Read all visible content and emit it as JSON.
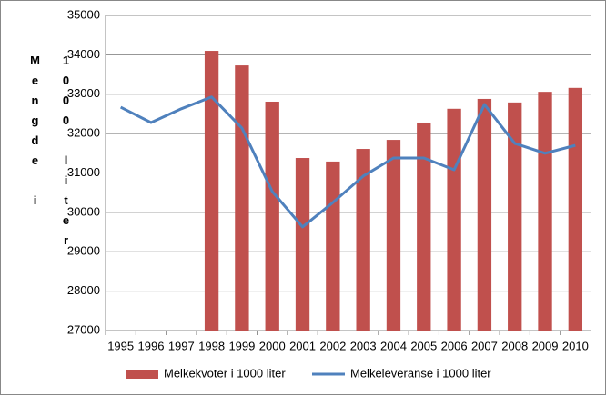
{
  "chart_data": {
    "type": "bar-line",
    "y_label": "Mengde i 1000 liter",
    "categories": [
      "1995",
      "1996",
      "1997",
      "1998",
      "1999",
      "2000",
      "2001",
      "2002",
      "2003",
      "2004",
      "2005",
      "2006",
      "2007",
      "2008",
      "2009",
      "2010"
    ],
    "series": [
      {
        "name": "Melkekvoter i 1000 liter",
        "type": "bar",
        "color": "#c0504d",
        "values": [
          null,
          null,
          null,
          34100,
          33730,
          32810,
          31380,
          31290,
          31610,
          31840,
          32280,
          32630,
          32880,
          32790,
          33060,
          33160
        ]
      },
      {
        "name": "Melkeleveranse i 1000 liter",
        "type": "line",
        "color": "#4f81bd",
        "values": [
          32670,
          32280,
          32630,
          32930,
          32140,
          30530,
          29630,
          30250,
          30920,
          31380,
          31380,
          31080,
          32740,
          31750,
          31500,
          31700
        ]
      }
    ],
    "ylim": [
      27000,
      35000
    ],
    "yticks": [
      27000,
      28000,
      29000,
      30000,
      31000,
      32000,
      33000,
      34000,
      35000
    ],
    "grid": true,
    "legend": "bottom"
  }
}
